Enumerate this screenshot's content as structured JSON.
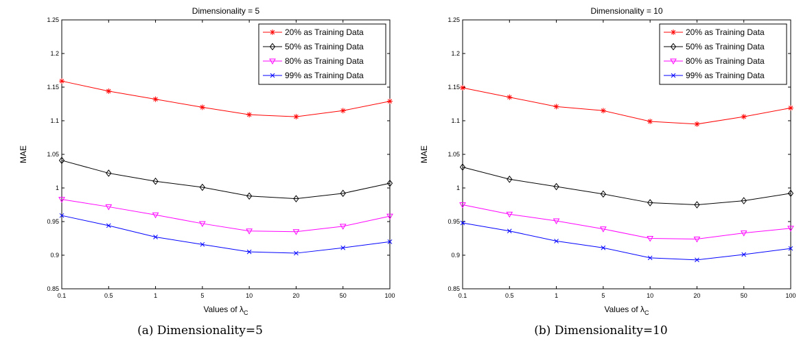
{
  "chart_data": [
    {
      "type": "line",
      "title": "Dimensionality = 5",
      "xlabel": "Values of λ",
      "xlabel_sub": "C",
      "ylabel": "MAE",
      "categories": [
        "0.1",
        "0.5",
        "1",
        "5",
        "10",
        "20",
        "50",
        "100"
      ],
      "ylim": [
        0.85,
        1.25
      ],
      "yticks": [
        "0.85",
        "0.9",
        "0.95",
        "1",
        "1.05",
        "1.1",
        "1.15",
        "1.2",
        "1.25"
      ],
      "legend_position": "top-right",
      "grid": false,
      "series": [
        {
          "name": "20% as Training Data",
          "color": "#ff0000",
          "marker": "star",
          "values": [
            1.159,
            1.144,
            1.132,
            1.12,
            1.109,
            1.106,
            1.115,
            1.129
          ]
        },
        {
          "name": "50% as Training Data",
          "color": "#000000",
          "marker": "diamond",
          "values": [
            1.041,
            1.022,
            1.01,
            1.001,
            0.988,
            0.984,
            0.992,
            1.007
          ]
        },
        {
          "name": "80% as Training Data",
          "color": "#ff00ff",
          "marker": "triangle-down",
          "values": [
            0.983,
            0.972,
            0.96,
            0.947,
            0.936,
            0.935,
            0.943,
            0.958
          ]
        },
        {
          "name": "99% as Training Data",
          "color": "#0000ff",
          "marker": "x",
          "values": [
            0.959,
            0.944,
            0.927,
            0.916,
            0.905,
            0.903,
            0.911,
            0.92
          ]
        }
      ]
    },
    {
      "type": "line",
      "title": "Dimensionality = 10",
      "xlabel": "Values of λ",
      "xlabel_sub": "C",
      "ylabel": "MAE",
      "categories": [
        "0.1",
        "0.5",
        "1",
        "5",
        "10",
        "20",
        "50",
        "100"
      ],
      "ylim": [
        0.85,
        1.25
      ],
      "yticks": [
        "0.85",
        "0.9",
        "0.95",
        "1",
        "1.05",
        "1.1",
        "1.15",
        "1.2",
        "1.25"
      ],
      "legend_position": "top-right",
      "grid": false,
      "series": [
        {
          "name": "20% as Training Data",
          "color": "#ff0000",
          "marker": "star",
          "values": [
            1.149,
            1.135,
            1.121,
            1.115,
            1.099,
            1.095,
            1.106,
            1.119
          ]
        },
        {
          "name": "50% as Training Data",
          "color": "#000000",
          "marker": "diamond",
          "values": [
            1.031,
            1.013,
            1.002,
            0.991,
            0.978,
            0.975,
            0.981,
            0.992
          ]
        },
        {
          "name": "80% as Training Data",
          "color": "#ff00ff",
          "marker": "triangle-down",
          "values": [
            0.975,
            0.961,
            0.951,
            0.939,
            0.925,
            0.924,
            0.933,
            0.94
          ]
        },
        {
          "name": "99% as Training Data",
          "color": "#0000ff",
          "marker": "x",
          "values": [
            0.948,
            0.936,
            0.921,
            0.911,
            0.896,
            0.893,
            0.901,
            0.91
          ]
        }
      ]
    }
  ],
  "captions": [
    "(a) Dimensionality=5",
    "(b) Dimensionality=10"
  ]
}
